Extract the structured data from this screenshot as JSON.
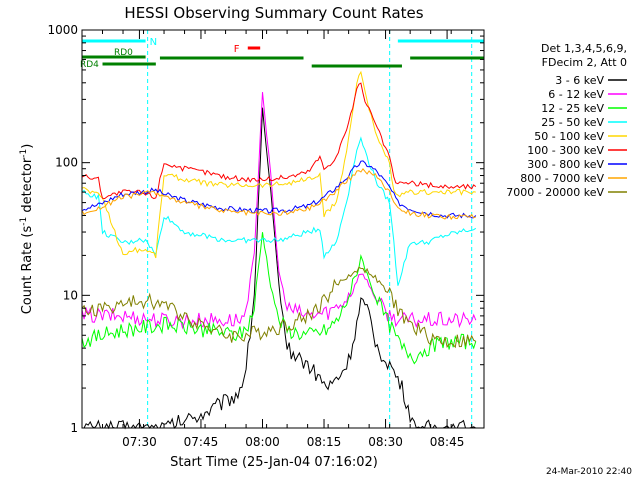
{
  "chart_data": {
    "type": "line",
    "title": "HESSI Observing Summary Count Rates",
    "xlabel": "Start Time (25-Jan-04 07:16:02)",
    "ylabel_main": "Count Rate (s",
    "ylabel_sup1": "-1",
    "ylabel_mid": " detector",
    "ylabel_sup2": "-1",
    "ylabel_end": ")",
    "y_scale": "log",
    "ylim": [
      1,
      1000
    ],
    "xlim_minutes": [
      0,
      98
    ],
    "x_tick_labels": [
      "07:30",
      "07:45",
      "08:00",
      "08:15",
      "08:30",
      "08:45"
    ],
    "x_tick_minutes": [
      14,
      29,
      44,
      59,
      74,
      89
    ],
    "y_tick_labels": [
      "1",
      "10",
      "100",
      "1000"
    ],
    "y_tick_values": [
      1,
      10,
      100,
      1000
    ],
    "grid": false,
    "legend_position": "right",
    "legend_header": [
      "Det 1,3,4,5,6,9,",
      "FDecim 2, Att 0"
    ],
    "footer_date": "24-Mar-2010 22:40",
    "series": [
      {
        "name": "3 - 6 keV",
        "color": "#000000",
        "x": [
          0,
          10,
          20,
          30,
          38,
          40,
          42,
          44,
          46,
          48,
          50,
          55,
          60,
          63,
          65,
          67,
          68,
          70,
          72,
          75,
          78,
          81,
          84,
          90,
          96
        ],
        "y": [
          1,
          1,
          1,
          1.3,
          1.8,
          2.8,
          10,
          250,
          60,
          12,
          4,
          3,
          2,
          2.5,
          3.2,
          6,
          9,
          7,
          4,
          3,
          2,
          1,
          1,
          1,
          1
        ]
      },
      {
        "name": "6 - 12 keV",
        "color": "#ff00ff",
        "x": [
          0,
          10,
          20,
          30,
          38,
          40,
          42,
          44,
          46,
          48,
          50,
          55,
          60,
          63,
          65,
          67,
          68,
          70,
          72,
          75,
          78,
          81,
          84,
          90,
          96
        ],
        "y": [
          7,
          7,
          6.5,
          6.5,
          6.5,
          7,
          20,
          350,
          80,
          15,
          8,
          7,
          7.5,
          8.5,
          10,
          13,
          15,
          12,
          9,
          7,
          6.5,
          6.5,
          6.5,
          6.5,
          6.5
        ]
      },
      {
        "name": "12 - 25 keV",
        "color": "#00ff00",
        "x": [
          0,
          5,
          10,
          20,
          30,
          38,
          40,
          42,
          44,
          46,
          48,
          50,
          55,
          60,
          63,
          65,
          67,
          68,
          70,
          72,
          75,
          78,
          81,
          84,
          90,
          96
        ],
        "y": [
          4.5,
          5,
          5.5,
          6,
          5.5,
          5,
          5.5,
          8,
          30,
          12,
          6.5,
          5.5,
          5,
          5.5,
          7,
          10,
          14,
          20,
          13,
          9,
          6,
          4,
          3.5,
          4,
          4.5,
          4.5
        ]
      },
      {
        "name": "25 - 50 keV",
        "color": "#00ffff",
        "x": [
          0,
          4,
          5,
          10,
          12,
          14,
          16,
          18,
          20,
          25,
          30,
          35,
          40,
          45,
          48,
          52,
          55,
          58,
          59,
          62,
          65,
          67,
          68,
          70,
          72,
          75,
          76,
          77,
          80,
          84,
          88,
          92,
          96
        ],
        "y": [
          60,
          55,
          30,
          25,
          25,
          27,
          25,
          20,
          40,
          30,
          28,
          26,
          26,
          26,
          26,
          28,
          30,
          32,
          20,
          25,
          60,
          130,
          150,
          100,
          70,
          50,
          25,
          12,
          25,
          25,
          28,
          30,
          32
        ]
      },
      {
        "name": "50 - 100 keV",
        "color": "#ffd700",
        "x": [
          0,
          5,
          10,
          12,
          14,
          16,
          18,
          20,
          25,
          30,
          35,
          40,
          45,
          50,
          55,
          58,
          59,
          62,
          65,
          67,
          68,
          69,
          70,
          72,
          75,
          76,
          77,
          80,
          84,
          88,
          92,
          96
        ],
        "y": [
          65,
          55,
          20,
          22,
          22,
          22,
          20,
          82,
          75,
          70,
          68,
          68,
          68,
          70,
          75,
          80,
          40,
          50,
          150,
          400,
          500,
          350,
          250,
          150,
          100,
          60,
          55,
          60,
          60,
          60,
          60,
          60
        ]
      },
      {
        "name": "100 - 300 keV",
        "color": "#ff0000",
        "x": [
          0,
          4,
          5,
          10,
          14,
          18,
          20,
          25,
          30,
          35,
          40,
          45,
          50,
          55,
          58,
          59,
          62,
          65,
          67,
          68,
          69,
          70,
          72,
          75,
          76,
          77,
          80,
          84,
          88,
          92,
          96
        ],
        "y": [
          80,
          75,
          55,
          60,
          60,
          55,
          100,
          90,
          85,
          78,
          75,
          75,
          78,
          85,
          110,
          90,
          110,
          200,
          350,
          400,
          300,
          250,
          180,
          110,
          75,
          70,
          70,
          68,
          66,
          66,
          66
        ]
      },
      {
        "name": "300 - 800 keV",
        "color": "#0000ff",
        "x": [
          0,
          4,
          8,
          10,
          14,
          18,
          20,
          25,
          30,
          35,
          40,
          45,
          50,
          55,
          58,
          60,
          62,
          65,
          67,
          68,
          69,
          70,
          72,
          75,
          77,
          80,
          84,
          88,
          92,
          96
        ],
        "y": [
          45,
          48,
          55,
          58,
          60,
          62,
          58,
          52,
          48,
          45,
          44,
          43,
          44,
          47,
          52,
          58,
          65,
          80,
          95,
          100,
          98,
          95,
          85,
          65,
          50,
          45,
          42,
          40,
          40,
          40
        ]
      },
      {
        "name": "800 - 7000 keV",
        "color": "#ffa500",
        "x": [
          0,
          4,
          8,
          10,
          14,
          18,
          20,
          25,
          30,
          35,
          40,
          45,
          50,
          55,
          58,
          60,
          62,
          65,
          67,
          68,
          69,
          70,
          72,
          75,
          77,
          80,
          84,
          88,
          92,
          96
        ],
        "y": [
          42,
          45,
          52,
          55,
          58,
          60,
          56,
          50,
          46,
          43,
          42,
          41,
          42,
          45,
          50,
          55,
          62,
          75,
          85,
          88,
          87,
          85,
          78,
          60,
          46,
          42,
          40,
          39,
          39,
          39
        ]
      },
      {
        "name": "7000 - 20000 keV",
        "color": "#808000",
        "x": [
          0,
          5,
          10,
          14,
          18,
          20,
          25,
          30,
          35,
          40,
          45,
          50,
          55,
          58,
          60,
          62,
          65,
          67,
          68,
          69,
          70,
          72,
          75,
          77,
          78,
          80,
          84,
          88,
          92,
          96
        ],
        "y": [
          7.5,
          8,
          8.5,
          9,
          9,
          8.5,
          7,
          6,
          5,
          5,
          5.5,
          6,
          7,
          8.5,
          10,
          12,
          14,
          15.5,
          16,
          15.5,
          15,
          13,
          10,
          8,
          7,
          6,
          5,
          4.5,
          4.5,
          4.5
        ]
      }
    ],
    "annotations": {
      "n_label": "N",
      "n_bar_x": [
        0,
        15.5
      ],
      "rd0_label": "RD0",
      "rd0_bar_x": [
        0,
        15.5
      ],
      "rd4_label": "RD4",
      "rd4_bar_x": [
        5,
        18
      ],
      "green_segments_x": [
        [
          19,
          54
        ],
        [
          56,
          78
        ],
        [
          80,
          98
        ]
      ],
      "cyan_segment_x": [
        77,
        98
      ],
      "f_label": "F",
      "f_bar_x": [
        37,
        41
      ],
      "dashed_lines_x": [
        16,
        75,
        95
      ]
    }
  }
}
